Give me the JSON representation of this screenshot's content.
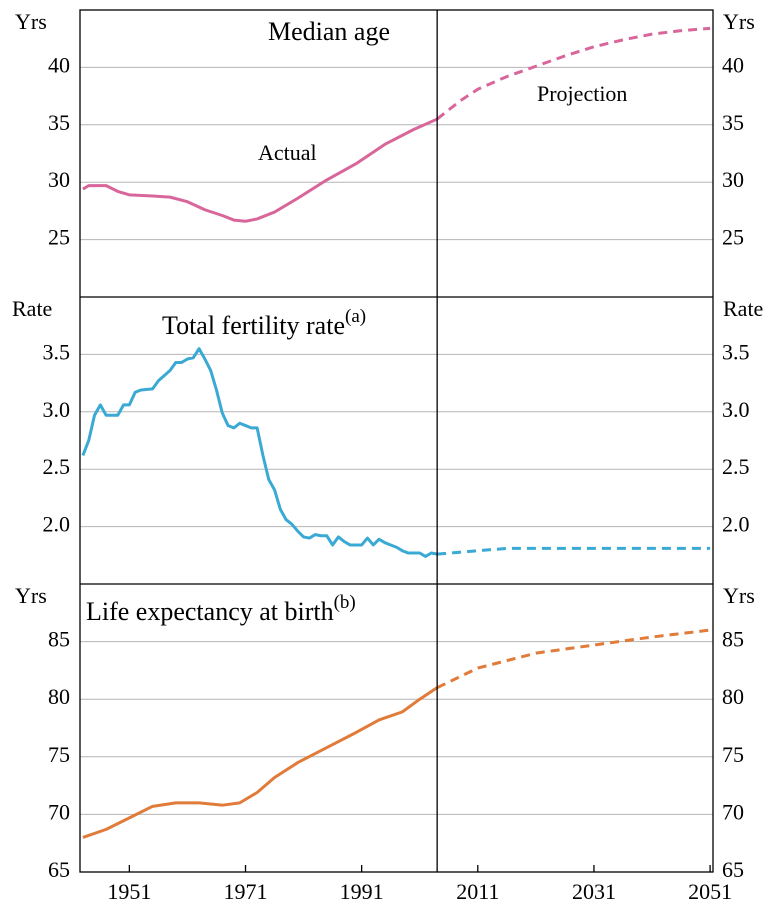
{
  "chart_data": [
    {
      "type": "line",
      "title": "Median age",
      "ylabel": "Yrs",
      "annotations": [
        "Actual",
        "Projection"
      ],
      "xlim": [
        1942.5,
        2051.5
      ],
      "ylim": [
        20,
        45
      ],
      "yticks": [
        25,
        30,
        35,
        40
      ],
      "series": [
        {
          "name": "Actual",
          "color": "#d9669a",
          "dashed": false,
          "x": [
            1943,
            1944,
            1947,
            1949,
            1951,
            1955,
            1958,
            1961,
            1964,
            1967,
            1969,
            1971,
            1973,
            1976,
            1980,
            1985,
            1990,
            1995,
            2000,
            2004
          ],
          "values": [
            29.4,
            29.7,
            29.7,
            29.2,
            28.9,
            28.8,
            28.7,
            28.3,
            27.6,
            27.1,
            26.7,
            26.6,
            26.8,
            27.4,
            28.6,
            30.2,
            31.6,
            33.3,
            34.6,
            35.5
          ]
        },
        {
          "name": "Projection",
          "color": "#d9669a",
          "dashed": true,
          "x": [
            2004,
            2008,
            2011,
            2016,
            2021,
            2026,
            2031,
            2036,
            2041,
            2046,
            2051
          ],
          "values": [
            35.5,
            37.1,
            38.1,
            39.2,
            40.1,
            41.0,
            41.8,
            42.4,
            42.9,
            43.2,
            43.4
          ]
        }
      ]
    },
    {
      "type": "line",
      "title": "Total fertility rate",
      "title_note": "(a)",
      "ylabel": "Rate",
      "xlim": [
        1942.5,
        2051.5
      ],
      "ylim": [
        1.5,
        4.0
      ],
      "yticks": [
        {
          "value": 2,
          "label": "2.0"
        },
        2.5,
        {
          "value": 3,
          "label": "3.0"
        },
        3.5
      ],
      "series": [
        {
          "color": "#3aa9d4",
          "dashed": false,
          "x": [
            1943,
            1944,
            1945,
            1946,
            1947,
            1949,
            1950,
            1951,
            1952,
            1953,
            1955,
            1956,
            1958,
            1959,
            1960,
            1961,
            1962,
            1963,
            1964,
            1965,
            1966,
            1967,
            1968,
            1969,
            1970,
            1971,
            1972,
            1973,
            1974,
            1975,
            1976,
            1977,
            1978,
            1979,
            1980,
            1981,
            1982,
            1983,
            1984,
            1985,
            1986,
            1987,
            1988,
            1989,
            1990,
            1991,
            1992,
            1993,
            1994,
            1995,
            1996,
            1997,
            1998,
            1999,
            2000,
            2001,
            2002,
            2003,
            2004
          ],
          "values": [
            2.62,
            2.75,
            2.97,
            3.06,
            2.97,
            2.97,
            3.06,
            3.06,
            3.17,
            3.19,
            3.2,
            3.27,
            3.36,
            3.43,
            3.43,
            3.46,
            3.47,
            3.55,
            3.46,
            3.36,
            3.19,
            2.99,
            2.88,
            2.86,
            2.9,
            2.88,
            2.86,
            2.86,
            2.62,
            2.41,
            2.32,
            2.15,
            2.06,
            2.02,
            1.96,
            1.91,
            1.9,
            1.93,
            1.92,
            1.92,
            1.84,
            1.91,
            1.87,
            1.84,
            1.84,
            1.84,
            1.9,
            1.84,
            1.89,
            1.86,
            1.84,
            1.82,
            1.79,
            1.77,
            1.77,
            1.77,
            1.74,
            1.77,
            1.76
          ]
        },
        {
          "color": "#3aa9d4",
          "dashed": true,
          "x": [
            2004,
            2011,
            2016,
            2021,
            2031,
            2041,
            2051
          ],
          "values": [
            1.76,
            1.79,
            1.81,
            1.81,
            1.81,
            1.81,
            1.81
          ]
        }
      ]
    },
    {
      "type": "line",
      "title": "Life expectancy at birth",
      "title_note": "(b)",
      "ylabel": "Yrs",
      "xlim": [
        1942.5,
        2051.5
      ],
      "ylim": [
        65,
        90
      ],
      "yticks": [
        65,
        70,
        75,
        80,
        85
      ],
      "xticks": [
        1951,
        1971,
        1991,
        2011,
        2031,
        2051
      ],
      "series": [
        {
          "color": "#e07b39",
          "dashed": false,
          "x": [
            1943,
            1947,
            1951,
            1955,
            1959,
            1963,
            1967,
            1970,
            1973,
            1976,
            1980,
            1985,
            1990,
            1994,
            1998,
            2001,
            2004
          ],
          "values": [
            68.0,
            68.7,
            69.7,
            70.7,
            71.0,
            71.0,
            70.8,
            71.0,
            71.9,
            73.2,
            74.5,
            75.8,
            77.1,
            78.2,
            78.9,
            80.0,
            81.0
          ]
        },
        {
          "color": "#e07b39",
          "dashed": true,
          "x": [
            2004,
            2011,
            2021,
            2031,
            2041,
            2051
          ],
          "values": [
            81.0,
            82.7,
            84.0,
            84.7,
            85.4,
            86.0
          ]
        }
      ]
    }
  ]
}
